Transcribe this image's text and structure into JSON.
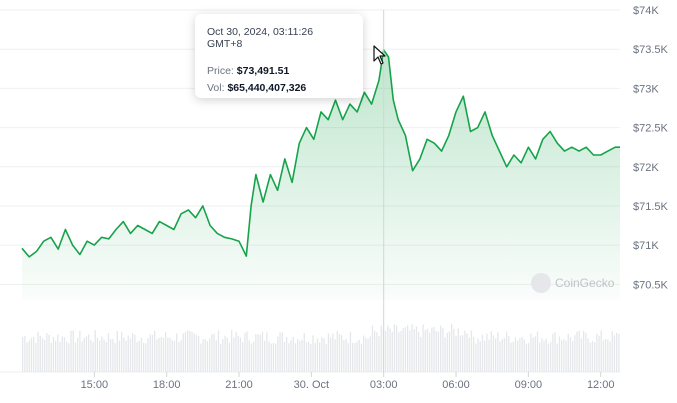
{
  "chart_data": {
    "type": "area",
    "y_ticks": [
      "$74K",
      "$73.5K",
      "$73K",
      "$72.5K",
      "$72K",
      "$71.5K",
      "$71K",
      "$70.5K"
    ],
    "y_tick_values": [
      74000,
      73500,
      73000,
      72500,
      72000,
      71500,
      71000,
      70500
    ],
    "ylim": [
      70300,
      74000
    ],
    "x_ticks": [
      "15:00",
      "18:00",
      "21:00",
      "30. Oct",
      "03:00",
      "06:00",
      "09:00",
      "12:00"
    ],
    "x_tick_hours": [
      15,
      18,
      21,
      24,
      27,
      30,
      33,
      36
    ],
    "xlim_hours": [
      12.0,
      36.8
    ],
    "grid": true,
    "line_color": "#16a34a",
    "fill_color": "#16a34a",
    "volume_color": "#e5e7eb",
    "series": [
      {
        "hours": [
          12.0,
          12.3,
          12.6,
          12.9,
          13.2,
          13.5,
          13.8,
          14.1,
          14.4,
          14.7,
          15.0,
          15.3,
          15.6,
          15.9,
          16.2,
          16.5,
          16.8,
          17.1,
          17.4,
          17.7,
          18.0,
          18.3,
          18.6,
          18.9,
          19.2,
          19.5,
          19.8,
          20.1,
          20.4,
          20.7,
          21.0,
          21.3,
          21.5,
          21.7,
          22.0,
          22.3,
          22.6,
          22.9,
          23.2,
          23.5,
          23.8,
          24.1,
          24.4,
          24.7,
          25.0,
          25.3,
          25.6,
          25.9,
          26.2,
          26.5,
          26.8,
          27.0,
          27.2,
          27.4,
          27.6,
          27.9,
          28.2,
          28.5,
          28.8,
          29.1,
          29.4,
          29.7,
          30.0,
          30.3,
          30.6,
          30.9,
          31.2,
          31.5,
          31.8,
          32.1,
          32.4,
          32.7,
          33.0,
          33.3,
          33.6,
          33.9,
          34.2,
          34.5,
          34.8,
          35.1,
          35.4,
          35.7,
          36.0,
          36.3,
          36.6,
          36.8
        ],
        "values": [
          70960,
          70850,
          70920,
          71050,
          71100,
          70950,
          71200,
          71000,
          70880,
          71050,
          71000,
          71100,
          71080,
          71200,
          71300,
          71150,
          71250,
          71200,
          71150,
          71300,
          71250,
          71200,
          71400,
          71450,
          71350,
          71500,
          71250,
          71150,
          71100,
          71080,
          71050,
          70860,
          71500,
          71900,
          71550,
          71900,
          71700,
          72100,
          71800,
          72300,
          72500,
          72350,
          72700,
          72600,
          72850,
          72600,
          72800,
          72700,
          72950,
          72800,
          73100,
          73491,
          73400,
          72850,
          72600,
          72400,
          71950,
          72100,
          72350,
          72300,
          72200,
          72400,
          72700,
          72900,
          72450,
          72500,
          72700,
          72400,
          72200,
          72000,
          72150,
          72050,
          72250,
          72100,
          72350,
          72450,
          72300,
          72200,
          72250,
          72200,
          72250,
          72150,
          72150,
          72200,
          72250,
          72250
        ]
      }
    ]
  },
  "tooltip": {
    "date": "Oct 30, 2024, 03:11:26 GMT+8",
    "price_label": "Price:",
    "price_value": "$73,491.51",
    "vol_label": "Vol:",
    "vol_value": "$65,440,407,326"
  },
  "hover_hour": 27.0,
  "watermark": "CoinGecko"
}
